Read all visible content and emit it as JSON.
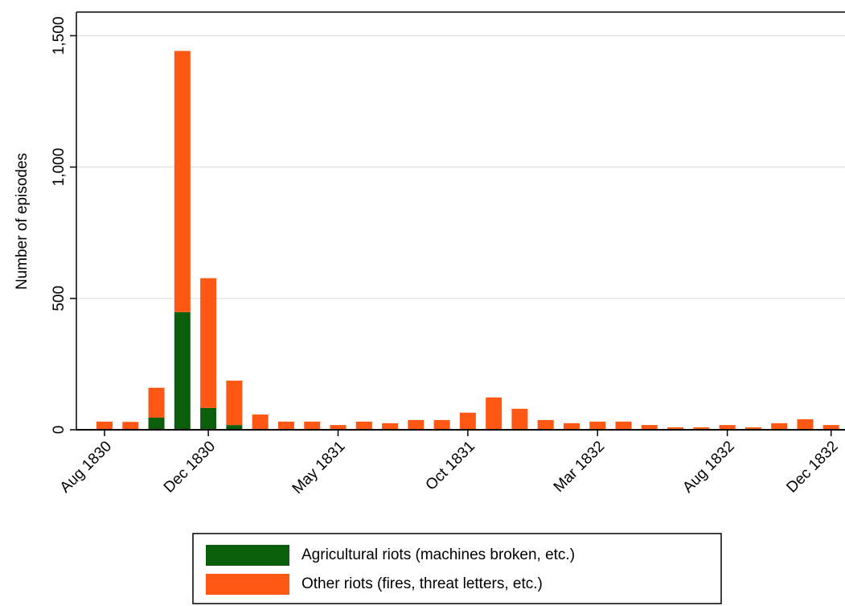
{
  "chart_data": {
    "type": "stacked-bar",
    "y_label": "Number of episodes",
    "categories": [
      "Aug 1830",
      null,
      null,
      null,
      "Dec 1830",
      null,
      null,
      null,
      null,
      "May 1831",
      null,
      null,
      null,
      null,
      "Oct 1831",
      null,
      null,
      null,
      null,
      "Mar 1832",
      null,
      null,
      null,
      null,
      "Aug 1832",
      null,
      null,
      null,
      "Dec 1832"
    ],
    "series": [
      {
        "name": "Agricultural riots (machines broken, etc.)",
        "color": "#0b5e0b",
        "values": [
          0,
          0,
          46,
          448,
          83,
          18,
          0,
          0,
          0,
          0,
          0,
          0,
          0,
          0,
          0,
          0,
          0,
          0,
          0,
          0,
          0,
          0,
          0,
          0,
          0,
          0,
          0,
          0,
          0
        ]
      },
      {
        "name": "Other riots (fires, threat letters, etc.)",
        "color": "#ff5714",
        "values": [
          31,
          30,
          114,
          994,
          494,
          169,
          58,
          31,
          31,
          18,
          31,
          25,
          37,
          37,
          65,
          123,
          80,
          37,
          25,
          31,
          31,
          18,
          9,
          9,
          18,
          9,
          25,
          40,
          18
        ]
      }
    ],
    "ylim": [
      0,
      1590
    ],
    "yticks": [
      0,
      500,
      {
        "value": 1000,
        "label": "1,000"
      },
      {
        "value": 1500,
        "label": "1,500"
      }
    ],
    "grid": true
  }
}
